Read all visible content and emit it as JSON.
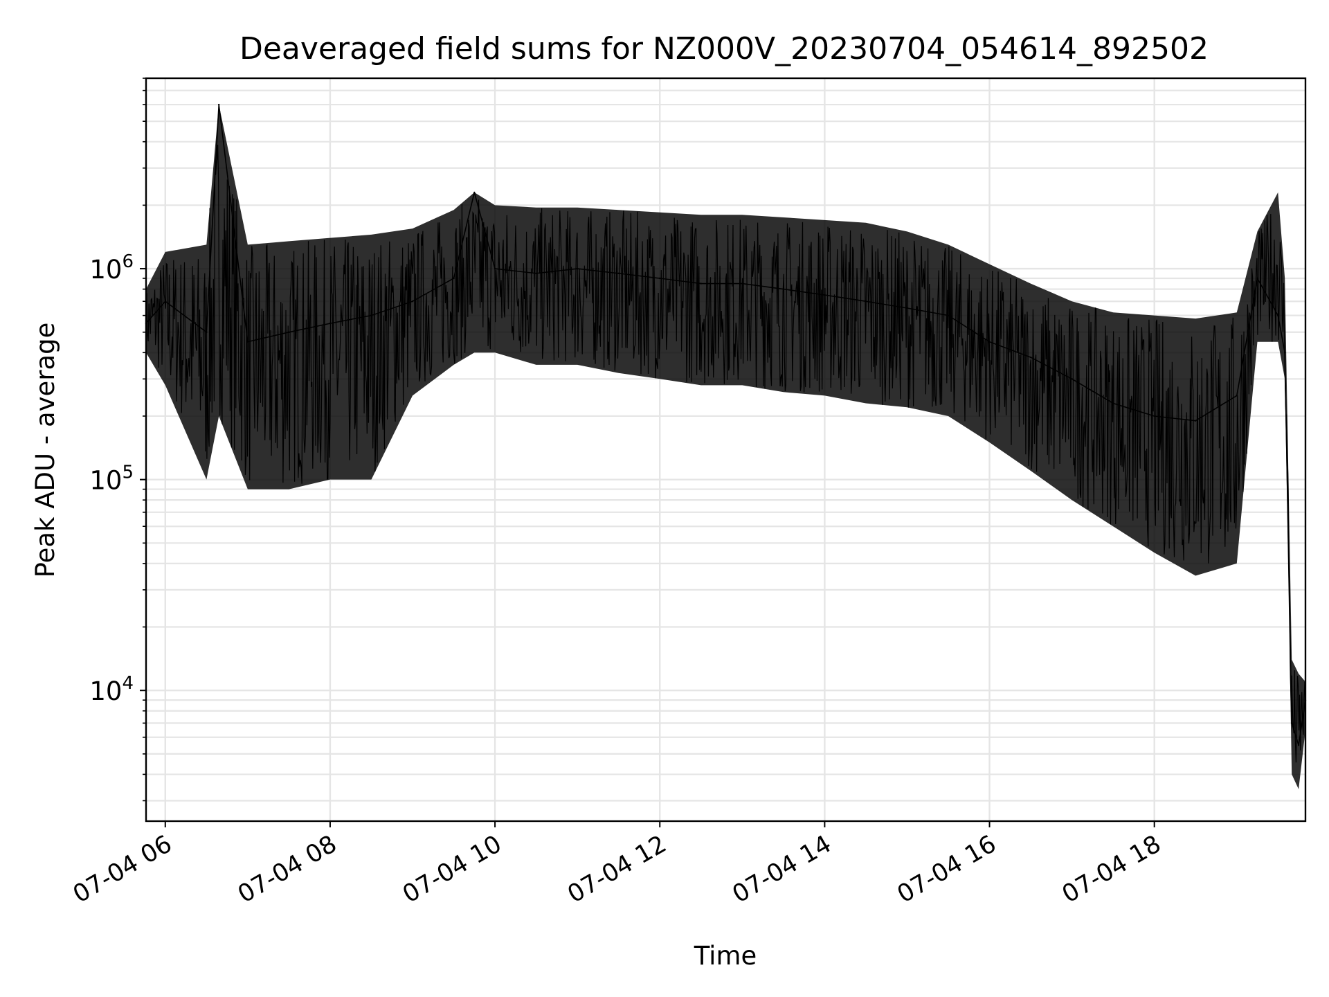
{
  "chart_data": {
    "type": "line",
    "title": "Deaveraged field sums for NZ000V_20230704_054614_892502",
    "xlabel": "Time",
    "ylabel": "Peak ADU - average",
    "yscale": "log",
    "grid": true,
    "grid_minor": true,
    "line_color": "#000000",
    "grid_color": "#e5e5e5",
    "xlim": [
      "2023-07-04 05:46",
      "2023-07-04 19:50"
    ],
    "ylim": [
      2400,
      8000000
    ],
    "x_ticks": [
      {
        "value": "2023-07-04 06:00",
        "label": "07-04 06"
      },
      {
        "value": "2023-07-04 08:00",
        "label": "07-04 08"
      },
      {
        "value": "2023-07-04 10:00",
        "label": "07-04 10"
      },
      {
        "value": "2023-07-04 12:00",
        "label": "07-04 12"
      },
      {
        "value": "2023-07-04 14:00",
        "label": "07-04 14"
      },
      {
        "value": "2023-07-04 16:00",
        "label": "07-04 16"
      },
      {
        "value": "2023-07-04 18:00",
        "label": "07-04 18"
      }
    ],
    "y_ticks": [
      {
        "value": 10000,
        "base": "10",
        "exp": "4"
      },
      {
        "value": 100000,
        "base": "10",
        "exp": "5"
      },
      {
        "value": 1000000,
        "base": "10",
        "exp": "6"
      }
    ],
    "series": [
      {
        "x": [
          "2023-07-04 05:46",
          "2023-07-04 06:00",
          "2023-07-04 06:30",
          "2023-07-04 06:39",
          "2023-07-04 07:00",
          "2023-07-04 07:30",
          "2023-07-04 08:00",
          "2023-07-04 08:30",
          "2023-07-04 09:00",
          "2023-07-04 09:30",
          "2023-07-04 09:45",
          "2023-07-04 10:00",
          "2023-07-04 10:30",
          "2023-07-04 11:00",
          "2023-07-04 11:30",
          "2023-07-04 12:00",
          "2023-07-04 12:30",
          "2023-07-04 13:00",
          "2023-07-04 13:30",
          "2023-07-04 14:00",
          "2023-07-04 14:30",
          "2023-07-04 15:00",
          "2023-07-04 15:30",
          "2023-07-04 16:00",
          "2023-07-04 16:30",
          "2023-07-04 17:00",
          "2023-07-04 17:30",
          "2023-07-04 18:00",
          "2023-07-04 18:30",
          "2023-07-04 19:00",
          "2023-07-04 19:15",
          "2023-07-04 19:30",
          "2023-07-04 19:35",
          "2023-07-04 19:40",
          "2023-07-04 19:45",
          "2023-07-04 19:50"
        ],
        "y": [
          550000,
          700000,
          500000,
          6000000,
          450000,
          500000,
          550000,
          600000,
          700000,
          900000,
          2300000,
          1000000,
          950000,
          1000000,
          950000,
          900000,
          850000,
          850000,
          800000,
          750000,
          700000,
          650000,
          600000,
          450000,
          380000,
          300000,
          230000,
          200000,
          190000,
          250000,
          900000,
          600000,
          400000,
          7000,
          5500,
          9000
        ],
        "y_low": [
          400000,
          280000,
          100000,
          200000,
          90000,
          90000,
          100000,
          100000,
          250000,
          350000,
          400000,
          400000,
          350000,
          350000,
          320000,
          300000,
          280000,
          280000,
          260000,
          250000,
          230000,
          220000,
          200000,
          150000,
          110000,
          80000,
          60000,
          45000,
          35000,
          40000,
          450000,
          450000,
          300000,
          4000,
          3400,
          6500
        ],
        "y_high": [
          800000,
          1200000,
          1300000,
          6000000,
          1300000,
          1350000,
          1400000,
          1450000,
          1550000,
          1900000,
          2300000,
          2000000,
          1950000,
          1950000,
          1900000,
          1850000,
          1800000,
          1800000,
          1750000,
          1700000,
          1650000,
          1500000,
          1300000,
          1050000,
          850000,
          700000,
          620000,
          600000,
          580000,
          620000,
          1500000,
          2300000,
          900000,
          14000,
          12000,
          11000
        ]
      }
    ]
  }
}
